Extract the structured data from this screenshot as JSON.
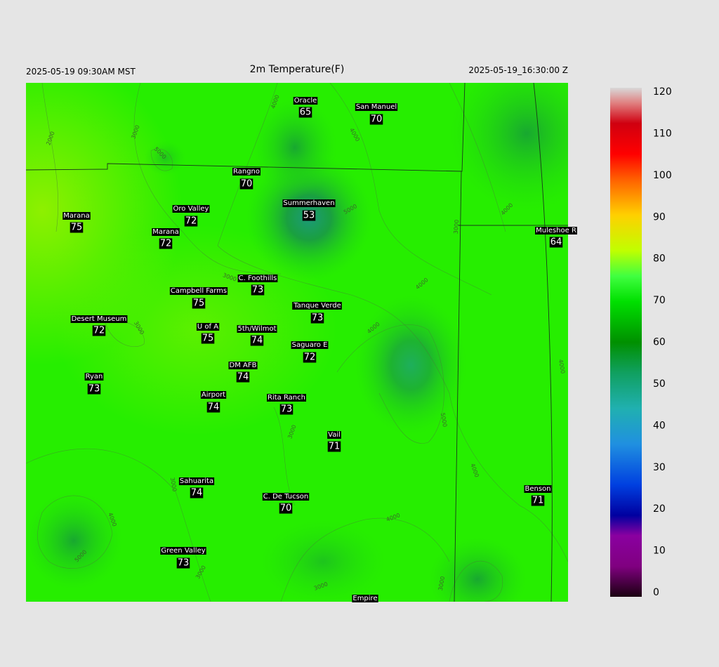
{
  "header": {
    "left": "2025-05-19 09:30AM MST",
    "title": "2m Temperature(F)",
    "right": "2025-05-19_16:30:00 Z"
  },
  "stations": [
    {
      "name": "Oracle",
      "temp": 65
    },
    {
      "name": "San Manuel",
      "temp": 70
    },
    {
      "name": "Rangno",
      "temp": 70
    },
    {
      "name": "Summerhaven",
      "temp": 53
    },
    {
      "name": "Marana",
      "temp": 75
    },
    {
      "name": "Oro Valley",
      "temp": 72
    },
    {
      "name": "Marana",
      "temp": 72
    },
    {
      "name": "Muleshoe R",
      "temp": 64
    },
    {
      "name": "C. Foothills",
      "temp": 73
    },
    {
      "name": "Campbell Farms",
      "temp": 75
    },
    {
      "name": "Tanque Verde",
      "temp": 73
    },
    {
      "name": "Desert Museum",
      "temp": 72
    },
    {
      "name": "U of A",
      "temp": 75
    },
    {
      "name": "5th/Wilmot",
      "temp": 74
    },
    {
      "name": "Saguaro E",
      "temp": 72
    },
    {
      "name": "DM AFB",
      "temp": 74
    },
    {
      "name": "Ryan",
      "temp": 73
    },
    {
      "name": "Airport",
      "temp": 74
    },
    {
      "name": "Rita Ranch",
      "temp": 73
    },
    {
      "name": "Vail",
      "temp": 71
    },
    {
      "name": "Sahuarita",
      "temp": 74
    },
    {
      "name": "Benson",
      "temp": 71
    },
    {
      "name": "C. De Tucson",
      "temp": 70
    },
    {
      "name": "Green Valley",
      "temp": 73
    },
    {
      "name": "Empire"
    }
  ],
  "contour_labels": [
    "2000",
    "3000",
    "4000",
    "4000",
    "5000",
    "5000",
    "3000",
    "4000",
    "4000",
    "4000",
    "3000",
    "3000",
    "5000",
    "3000",
    "4000",
    "3000",
    "4000",
    "4000",
    "5000",
    "3000",
    "3000",
    "3000",
    "4000"
  ],
  "colorbar": {
    "ticks": [
      0,
      10,
      20,
      30,
      40,
      50,
      60,
      70,
      80,
      90,
      100,
      110,
      120
    ],
    "lim": [
      0,
      120
    ]
  }
}
